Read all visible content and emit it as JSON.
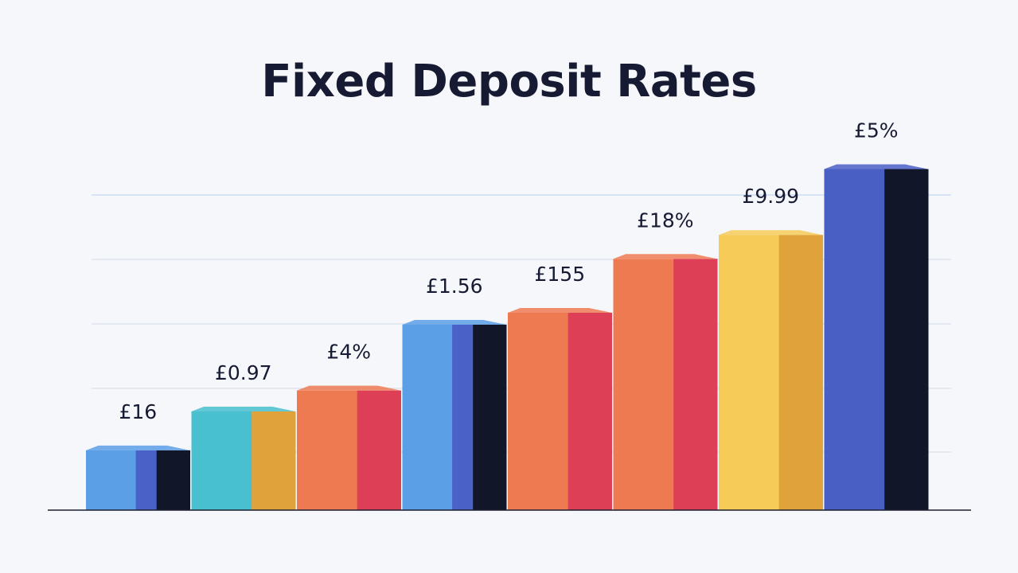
{
  "chart_data": {
    "type": "bar",
    "title": "Fixed Deposit Rates",
    "xlabel": "",
    "ylabel": "",
    "grid": true,
    "legend": "none",
    "bars": [
      {
        "label": "£16",
        "colors": [
          "#5b9fe6",
          "#4a62c8",
          "#111628"
        ]
      },
      {
        "label": "£0.97",
        "colors": [
          "#49c0cf",
          "#e0a23a"
        ]
      },
      {
        "label": "£4%",
        "colors": [
          "#ee7a52",
          "#dd3f56"
        ]
      },
      {
        "label": "£1.56",
        "colors": [
          "#5b9fe6",
          "#4a62c8",
          "#111628"
        ]
      },
      {
        "label": "£155",
        "colors": [
          "#ee7a52",
          "#dd3f56"
        ]
      },
      {
        "label": "£18%",
        "colors": [
          "#ee7a52",
          "#dd3f56"
        ]
      },
      {
        "label": "£9.99",
        "colors": [
          "#f7cb58",
          "#e0a23a"
        ]
      },
      {
        "label": "£5%",
        "colors": [
          "#4a5fc4",
          "#111628"
        ]
      }
    ],
    "values": [
      1.0,
      1.65,
      2.0,
      3.1,
      3.3,
      4.2,
      4.6,
      5.7
    ],
    "ylim": [
      0,
      6
    ]
  }
}
